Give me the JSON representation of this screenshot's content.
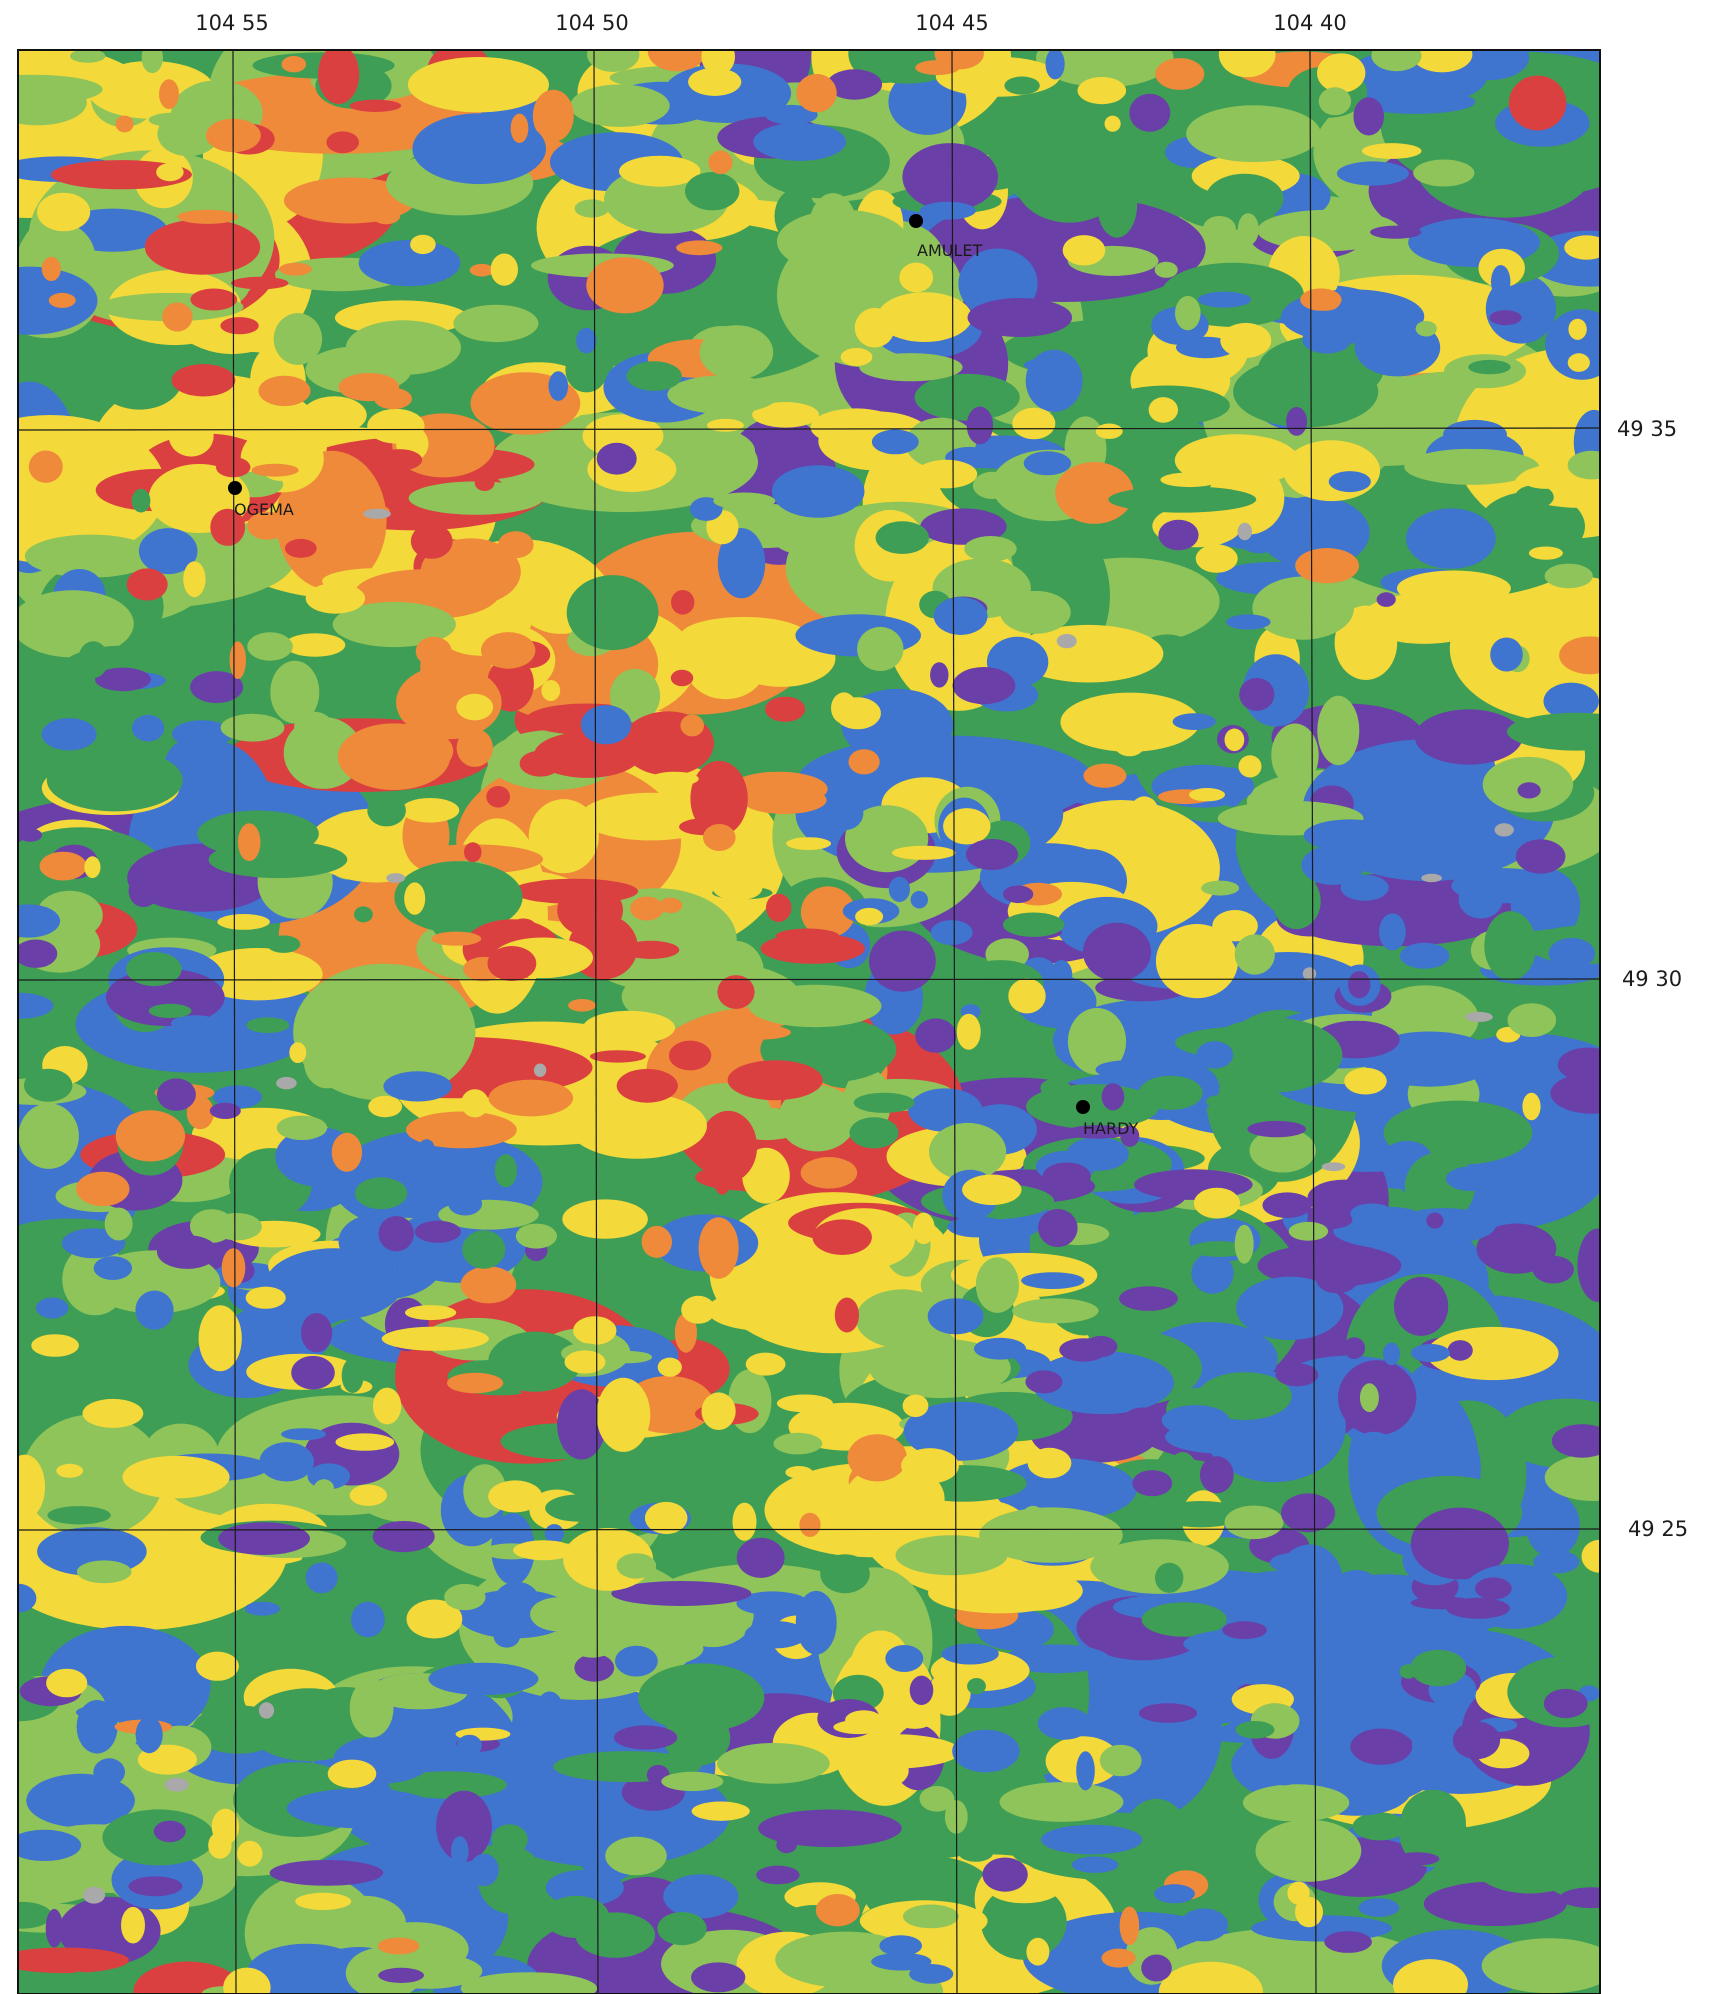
{
  "map": {
    "top_labels": [
      "104 55",
      "104 50",
      "104 45",
      "104 40"
    ],
    "right_labels": [
      "49 35",
      "49 30",
      "49 25"
    ],
    "towns": [
      {
        "name": "AMULET"
      },
      {
        "name": "OGEMA"
      },
      {
        "name": "HARDY"
      }
    ],
    "palette": {
      "purple": "#6a3fa8",
      "blue": "#3f74cf",
      "green": "#3f9e55",
      "light_green": "#8ec45a",
      "yellow": "#f3d93a",
      "orange": "#ee8a3a",
      "red": "#db4040",
      "gray": "#a9a9a9"
    }
  }
}
